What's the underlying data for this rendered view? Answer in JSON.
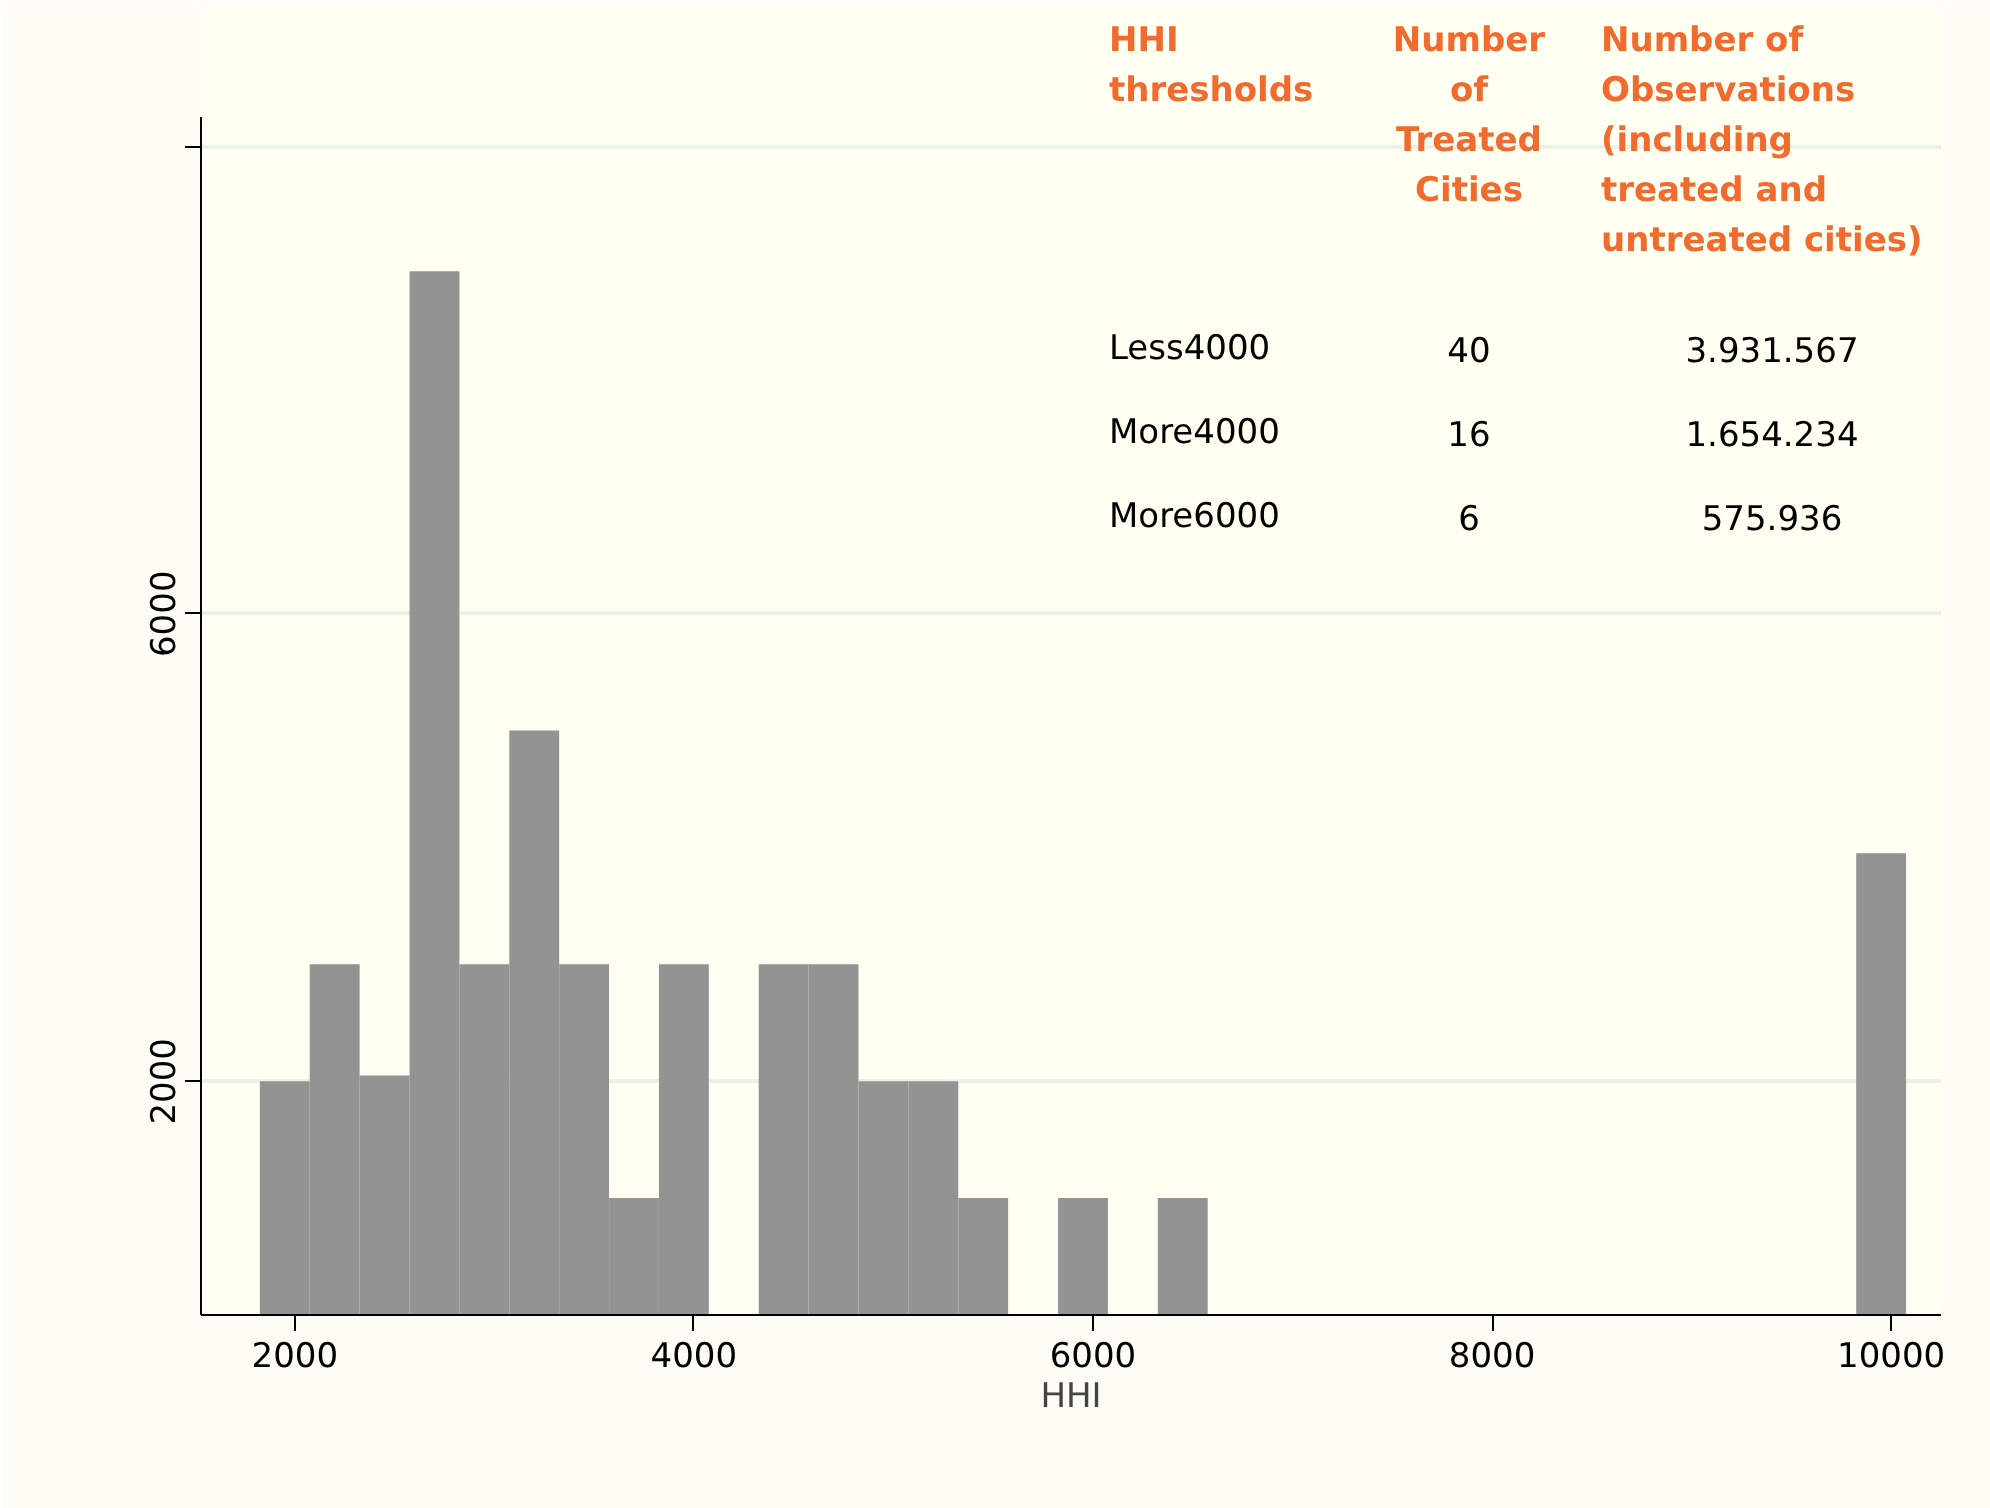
{
  "chart_data": {
    "type": "histogram",
    "xlabel": "HHI",
    "bins": [
      1825,
      2075,
      2325,
      2575,
      2825,
      3075,
      3325,
      3575,
      3825,
      4075,
      4325,
      4575,
      4825,
      5075,
      5325,
      5575,
      5825,
      6075,
      6325,
      6575,
      6825,
      7075,
      7325,
      7575,
      7825,
      8075,
      8325,
      8575,
      8825,
      9075,
      9325,
      9575,
      9825,
      10075
    ],
    "values": [
      2000,
      3000,
      2050,
      8930,
      3000,
      5000,
      3000,
      1000,
      3000,
      0,
      3000,
      3000,
      2000,
      2000,
      1000,
      0,
      1000,
      0,
      1000,
      0,
      0,
      0,
      0,
      0,
      0,
      0,
      0,
      0,
      0,
      0,
      0,
      0,
      3950
    ],
    "color": "#939393",
    "xlim": [
      1530,
      10250
    ],
    "ylim": [
      0,
      10250
    ],
    "xticks": [
      2000,
      4000,
      6000,
      8000,
      10000
    ],
    "yticks": [
      2000,
      6000,
      {
        "value": 10000,
        "label": null
      }
    ],
    "grid": "y",
    "annotations": [
      "HHI thresholds",
      "Number of Treated Cities",
      "Number of Observations (including treated and untreated cities)",
      "Less4000",
      "40",
      "3.931.567",
      "More4000",
      "16",
      "1.654.234",
      "More6000",
      "6",
      "575.936"
    ]
  }
}
